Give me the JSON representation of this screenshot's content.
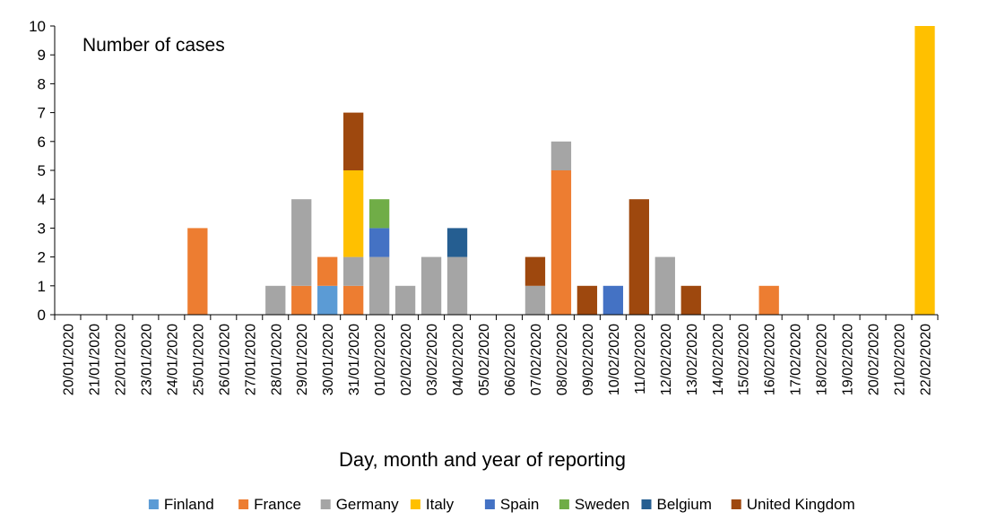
{
  "chart_data": {
    "type": "bar",
    "stacked": true,
    "title": "Number of cases",
    "xlabel": "Day, month and year of reporting",
    "ylabel": "",
    "ylim": [
      0,
      10
    ],
    "yticks": [
      0,
      1,
      2,
      3,
      4,
      5,
      6,
      7,
      8,
      9,
      10
    ],
    "grid": false,
    "legend_position": "bottom",
    "categories": [
      "20/01/2020",
      "21/01/2020",
      "22/01/2020",
      "23/01/2020",
      "24/01/2020",
      "25/01/2020",
      "26/01/2020",
      "27/01/2020",
      "28/01/2020",
      "29/01/2020",
      "30/01/2020",
      "31/01/2020",
      "01/02/2020",
      "02/02/2020",
      "03/02/2020",
      "04/02/2020",
      "05/02/2020",
      "06/02/2020",
      "07/02/2020",
      "08/02/2020",
      "09/02/2020",
      "10/02/2020",
      "11/02/2020",
      "12/02/2020",
      "13/02/2020",
      "14/02/2020",
      "15/02/2020",
      "16/02/2020",
      "17/02/2020",
      "18/02/2020",
      "19/02/2020",
      "20/02/2020",
      "21/02/2020",
      "22/02/2020"
    ],
    "series": [
      {
        "name": "Finland",
        "color": "#5B9BD5",
        "values": [
          0,
          0,
          0,
          0,
          0,
          0,
          0,
          0,
          0,
          0,
          1,
          0,
          0,
          0,
          0,
          0,
          0,
          0,
          0,
          0,
          0,
          0,
          0,
          0,
          0,
          0,
          0,
          0,
          0,
          0,
          0,
          0,
          0,
          0
        ]
      },
      {
        "name": "France",
        "color": "#ED7D31",
        "values": [
          0,
          0,
          0,
          0,
          0,
          3,
          0,
          0,
          0,
          1,
          1,
          1,
          0,
          0,
          0,
          0,
          0,
          0,
          0,
          5,
          0,
          0,
          0,
          0,
          0,
          0,
          0,
          1,
          0,
          0,
          0,
          0,
          0,
          0
        ]
      },
      {
        "name": "Germany",
        "color": "#A5A5A5",
        "values": [
          0,
          0,
          0,
          0,
          0,
          0,
          0,
          0,
          1,
          3,
          0,
          1,
          2,
          1,
          2,
          2,
          0,
          0,
          1,
          1,
          0,
          0,
          0,
          2,
          0,
          0,
          0,
          0,
          0,
          0,
          0,
          0,
          0,
          0
        ]
      },
      {
        "name": "Italy",
        "color": "#FFC000",
        "values": [
          0,
          0,
          0,
          0,
          0,
          0,
          0,
          0,
          0,
          0,
          0,
          3,
          0,
          0,
          0,
          0,
          0,
          0,
          0,
          0,
          0,
          0,
          0,
          0,
          0,
          0,
          0,
          0,
          0,
          0,
          0,
          0,
          0,
          10
        ]
      },
      {
        "name": "Spain",
        "color": "#4472C4",
        "values": [
          0,
          0,
          0,
          0,
          0,
          0,
          0,
          0,
          0,
          0,
          0,
          0,
          1,
          0,
          0,
          0,
          0,
          0,
          0,
          0,
          0,
          1,
          0,
          0,
          0,
          0,
          0,
          0,
          0,
          0,
          0,
          0,
          0,
          0
        ]
      },
      {
        "name": "Sweden",
        "color": "#70AD47",
        "values": [
          0,
          0,
          0,
          0,
          0,
          0,
          0,
          0,
          0,
          0,
          0,
          0,
          1,
          0,
          0,
          0,
          0,
          0,
          0,
          0,
          0,
          0,
          0,
          0,
          0,
          0,
          0,
          0,
          0,
          0,
          0,
          0,
          0,
          0
        ]
      },
      {
        "name": "Belgium",
        "color": "#255E91",
        "values": [
          0,
          0,
          0,
          0,
          0,
          0,
          0,
          0,
          0,
          0,
          0,
          0,
          0,
          0,
          0,
          1,
          0,
          0,
          0,
          0,
          0,
          0,
          0,
          0,
          0,
          0,
          0,
          0,
          0,
          0,
          0,
          0,
          0,
          0
        ]
      },
      {
        "name": "United Kingdom",
        "color": "#9E480E",
        "values": [
          0,
          0,
          0,
          0,
          0,
          0,
          0,
          0,
          0,
          0,
          0,
          2,
          0,
          0,
          0,
          0,
          0,
          0,
          1,
          0,
          1,
          0,
          4,
          0,
          1,
          0,
          0,
          0,
          0,
          0,
          0,
          0,
          0,
          0
        ]
      }
    ]
  }
}
